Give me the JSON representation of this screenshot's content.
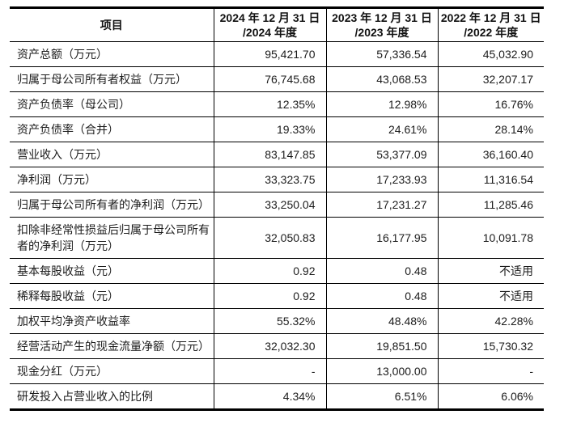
{
  "table": {
    "header": {
      "item": "项目",
      "periods": [
        {
          "date": "2024 年 12 月 31 日",
          "year": "/2024 年度"
        },
        {
          "date": "2023 年 12 月 31 日",
          "year": "/2023 年度"
        },
        {
          "date": "2022 年 12 月 31 日",
          "year": "/2022 年度"
        }
      ]
    },
    "rows": [
      {
        "label": "资产总额（万元）",
        "values": [
          "95,421.70",
          "57,336.54",
          "45,032.90"
        ]
      },
      {
        "label": "归属于母公司所有者权益（万元）",
        "values": [
          "76,745.68",
          "43,068.53",
          "32,207.17"
        ]
      },
      {
        "label": "资产负债率（母公司）",
        "values": [
          "12.35%",
          "12.98%",
          "16.76%"
        ]
      },
      {
        "label": "资产负债率（合并）",
        "values": [
          "19.33%",
          "24.61%",
          "28.14%"
        ]
      },
      {
        "label": "营业收入（万元）",
        "values": [
          "83,147.85",
          "53,377.09",
          "36,160.40"
        ]
      },
      {
        "label": "净利润（万元）",
        "values": [
          "33,323.75",
          "17,233.93",
          "11,316.54"
        ]
      },
      {
        "label": "归属于母公司所有者的净利润（万元）",
        "values": [
          "33,250.04",
          "17,231.27",
          "11,285.46"
        ]
      },
      {
        "label": "扣除非经常性损益后归属于母公司所有者的净利润（万元）",
        "values": [
          "32,050.83",
          "16,177.95",
          "10,091.78"
        ]
      },
      {
        "label": "基本每股收益（元）",
        "values": [
          "0.92",
          "0.48",
          "不适用"
        ]
      },
      {
        "label": "稀释每股收益（元）",
        "values": [
          "0.92",
          "0.48",
          "不适用"
        ]
      },
      {
        "label": "加权平均净资产收益率",
        "values": [
          "55.32%",
          "48.48%",
          "42.28%"
        ]
      },
      {
        "label": "经营活动产生的现金流量净额（万元）",
        "values": [
          "32,032.30",
          "19,851.50",
          "15,730.32"
        ]
      },
      {
        "label": "现金分红（万元）",
        "values": [
          "-",
          "13,000.00",
          "-"
        ]
      },
      {
        "label": "研发投入占营业收入的比例",
        "values": [
          "4.34%",
          "6.51%",
          "6.06%"
        ]
      }
    ]
  },
  "colors": {
    "border": "#000000",
    "text": "#1c1c1c",
    "background": "#ffffff"
  }
}
